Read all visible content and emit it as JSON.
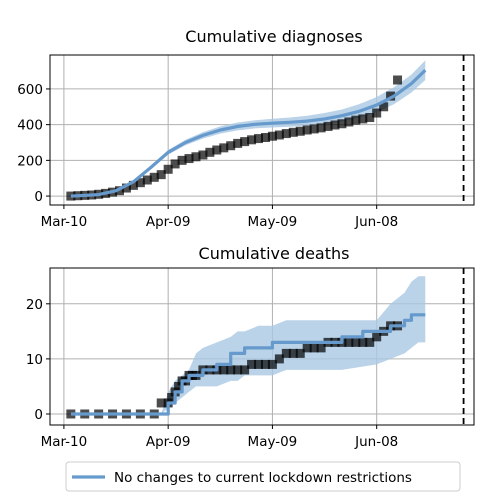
{
  "chart_data": [
    {
      "type": "line",
      "title": "Cumulative diagnoses",
      "x_tick_labels": [
        "Mar-10",
        "Apr-09",
        "May-09",
        "Jun-08"
      ],
      "x_ticks_day": [
        0,
        30,
        60,
        90
      ],
      "xlim_day": [
        -4,
        118
      ],
      "y_ticks": [
        0,
        200,
        400,
        600
      ],
      "ylim": [
        -50,
        790
      ],
      "grid": true,
      "vline_day": 115,
      "model_mean": {
        "name": "No changes to current lockdown restrictions",
        "color": "#6699cc",
        "day": [
          2,
          10,
          15,
          20,
          25,
          30,
          35,
          40,
          45,
          50,
          55,
          60,
          65,
          70,
          75,
          80,
          85,
          90,
          95,
          100,
          104
        ],
        "value": [
          0,
          8,
          30,
          80,
          160,
          245,
          300,
          340,
          370,
          390,
          402,
          408,
          413,
          420,
          432,
          450,
          475,
          510,
          560,
          630,
          705
        ]
      },
      "model_band": {
        "color": "#a9c8e4",
        "day": [
          2,
          10,
          15,
          20,
          25,
          30,
          35,
          40,
          45,
          50,
          55,
          60,
          65,
          70,
          75,
          80,
          85,
          90,
          95,
          100,
          104
        ],
        "lower": [
          -5,
          4,
          24,
          72,
          150,
          232,
          285,
          322,
          350,
          368,
          379,
          384,
          388,
          393,
          403,
          418,
          440,
          470,
          515,
          580,
          650
        ],
        "upper": [
          5,
          12,
          36,
          88,
          170,
          258,
          315,
          358,
          390,
          412,
          425,
          433,
          440,
          450,
          465,
          485,
          515,
          555,
          610,
          680,
          760
        ]
      },
      "observed": {
        "day": [
          2,
          4,
          6,
          8,
          10,
          12,
          14,
          16,
          18,
          20,
          22,
          24,
          26,
          28,
          30,
          32,
          34,
          36,
          38,
          40,
          42,
          44,
          46,
          48,
          50,
          52,
          54,
          56,
          58,
          60,
          62,
          64,
          66,
          68,
          70,
          72,
          74,
          76,
          78,
          80,
          82,
          84,
          86,
          88,
          90,
          92,
          94,
          96
        ],
        "value": [
          0,
          2,
          4,
          6,
          10,
          15,
          22,
          30,
          45,
          60,
          75,
          90,
          105,
          120,
          150,
          180,
          200,
          210,
          220,
          230,
          245,
          258,
          270,
          282,
          295,
          305,
          315,
          322,
          328,
          335,
          342,
          350,
          357,
          363,
          370,
          376,
          382,
          390,
          398,
          405,
          415,
          425,
          432,
          440,
          465,
          500,
          560,
          650
        ]
      }
    },
    {
      "type": "line",
      "title": "Cumulative deaths",
      "x_tick_labels": [
        "Mar-10",
        "Apr-09",
        "May-09",
        "Jun-08"
      ],
      "x_ticks_day": [
        0,
        30,
        60,
        90
      ],
      "xlim_day": [
        -4,
        118
      ],
      "y_ticks": [
        0,
        10,
        20
      ],
      "ylim": [
        -2,
        26.5
      ],
      "grid": true,
      "vline_day": 115,
      "model_mean": {
        "name": "No changes to current lockdown restrictions",
        "color": "#6699cc",
        "day": [
          2,
          30,
          30,
          32,
          32,
          34,
          34,
          36,
          36,
          40,
          40,
          44,
          44,
          48,
          48,
          52,
          52,
          56,
          56,
          60,
          60,
          64,
          64,
          80,
          80,
          86,
          86,
          94,
          94,
          98,
          98,
          100,
          100,
          104
        ],
        "value": [
          0,
          0,
          2,
          2,
          4,
          4,
          6,
          6,
          7,
          7,
          8,
          8,
          9,
          9,
          11,
          11,
          12,
          12,
          12,
          12,
          13,
          13,
          13,
          13,
          14,
          14,
          15,
          15,
          16,
          16,
          17,
          17,
          18,
          18
        ]
      },
      "model_band": {
        "color": "#a9c8e4",
        "day": [
          2,
          28,
          30,
          32,
          34,
          36,
          38,
          40,
          44,
          48,
          50,
          52,
          56,
          60,
          64,
          70,
          80,
          90,
          94,
          98,
          100,
          102,
          104
        ],
        "lower": [
          0,
          0,
          1,
          2,
          3,
          4,
          5,
          5,
          5,
          6,
          6,
          7,
          7,
          7,
          8,
          8,
          8,
          9,
          10,
          11,
          12,
          13,
          13
        ],
        "upper": [
          0,
          0,
          4,
          6,
          7,
          8,
          11,
          12,
          13,
          14,
          15,
          15,
          16,
          16,
          17,
          17,
          17,
          17,
          20,
          22,
          24,
          25,
          25
        ]
      },
      "observed": {
        "day": [
          2,
          6,
          10,
          14,
          18,
          22,
          26,
          28,
          30,
          31,
          32,
          33,
          34,
          35,
          36,
          37,
          38,
          40,
          42,
          44,
          46,
          48,
          50,
          52,
          54,
          56,
          58,
          60,
          62,
          64,
          66,
          68,
          70,
          72,
          74,
          76,
          78,
          80,
          82,
          84,
          86,
          88,
          90,
          92,
          94,
          96
        ],
        "value": [
          0,
          0,
          0,
          0,
          0,
          0,
          0,
          2,
          2,
          3,
          4,
          5,
          6,
          6,
          7,
          7,
          7,
          8,
          8,
          8,
          8,
          8,
          8,
          8,
          9,
          9,
          9,
          9,
          10,
          11,
          11,
          11,
          12,
          12,
          12,
          13,
          13,
          13,
          13,
          13,
          13,
          13,
          14,
          15,
          16,
          16
        ]
      }
    }
  ],
  "legend": {
    "label": "No changes to current lockdown restrictions",
    "color": "#6699cc"
  }
}
